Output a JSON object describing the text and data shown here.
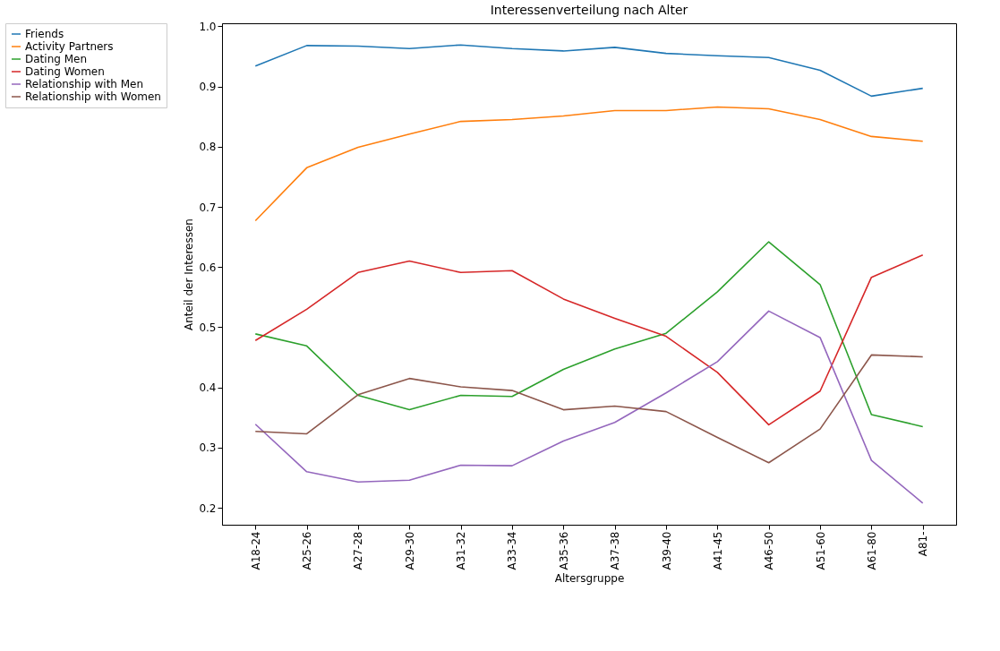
{
  "chart_data": {
    "type": "line",
    "title": "Interessenverteilung nach Alter",
    "xlabel": "Altersgruppe",
    "ylabel": "Anteil der Interessen",
    "categories": [
      "A18-24",
      "A25-26",
      "A27-28",
      "A29-30",
      "A31-32",
      "A33-34",
      "A35-36",
      "A37-38",
      "A39-40",
      "A41-45",
      "A46-50",
      "A51-60",
      "A61-80",
      "A81-"
    ],
    "ylim": [
      0.172,
      1.005
    ],
    "yticks": [
      {
        "value": 0.2,
        "label": "0.2"
      },
      {
        "value": 0.3,
        "label": "0.3"
      },
      {
        "value": 0.4,
        "label": "0.4"
      },
      {
        "value": 0.5,
        "label": "0.5"
      },
      {
        "value": 0.6,
        "label": "0.6"
      },
      {
        "value": 0.7,
        "label": "0.7"
      },
      {
        "value": 0.8,
        "label": "0.8"
      },
      {
        "value": 0.9,
        "label": "0.9"
      },
      {
        "value": 1.0,
        "label": "1.0"
      }
    ],
    "grid": false,
    "legend": "left",
    "line_style": "solid",
    "series": [
      {
        "name": "Friends",
        "color": "#1f77b4",
        "values": [
          0.934,
          0.968,
          0.967,
          0.963,
          0.969,
          0.963,
          0.959,
          0.965,
          0.955,
          0.951,
          0.948,
          0.927,
          0.884,
          0.897
        ]
      },
      {
        "name": "Activity Partners",
        "color": "#ff7f0e",
        "values": [
          0.677,
          0.765,
          0.799,
          0.821,
          0.842,
          0.845,
          0.851,
          0.86,
          0.86,
          0.866,
          0.863,
          0.845,
          0.817,
          0.809
        ]
      },
      {
        "name": "Dating Men",
        "color": "#2ca02c",
        "values": [
          0.489,
          0.469,
          0.387,
          0.363,
          0.387,
          0.385,
          0.43,
          0.464,
          0.49,
          0.559,
          0.642,
          0.571,
          0.355,
          0.335
        ]
      },
      {
        "name": "Dating Women",
        "color": "#d62728",
        "values": [
          0.478,
          0.53,
          0.591,
          0.61,
          0.591,
          0.594,
          0.547,
          0.515,
          0.485,
          0.425,
          0.338,
          0.394,
          0.583,
          0.62
        ]
      },
      {
        "name": "Relationship with Men",
        "color": "#9467bd",
        "values": [
          0.339,
          0.26,
          0.243,
          0.246,
          0.271,
          0.27,
          0.311,
          0.342,
          0.391,
          0.443,
          0.527,
          0.483,
          0.279,
          0.208
        ]
      },
      {
        "name": "Relationship with Women",
        "color": "#8c564b",
        "values": [
          0.327,
          0.323,
          0.388,
          0.415,
          0.401,
          0.395,
          0.363,
          0.369,
          0.36,
          0.317,
          0.275,
          0.331,
          0.454,
          0.451
        ]
      }
    ]
  }
}
